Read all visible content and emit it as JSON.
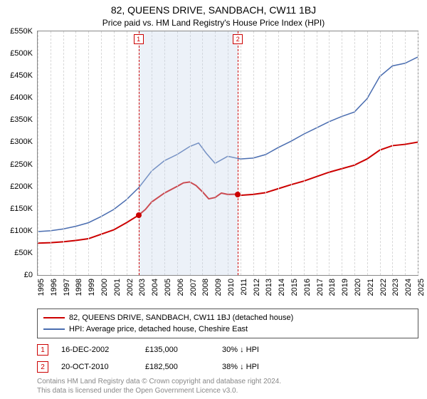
{
  "title": "82, QUEENS DRIVE, SANDBACH, CW11 1BJ",
  "subtitle": "Price paid vs. HM Land Registry's House Price Index (HPI)",
  "chart": {
    "type": "line",
    "ylim": [
      0,
      550000
    ],
    "ytick_step": 50000,
    "ylabels": [
      "£0",
      "£50K",
      "£100K",
      "£150K",
      "£200K",
      "£250K",
      "£300K",
      "£350K",
      "£400K",
      "£450K",
      "£500K",
      "£550K"
    ],
    "xlim": [
      1995,
      2025
    ],
    "xtick_years": [
      1995,
      1996,
      1997,
      1998,
      1999,
      2000,
      2001,
      2002,
      2003,
      2004,
      2005,
      2006,
      2007,
      2008,
      2009,
      2010,
      2011,
      2012,
      2013,
      2014,
      2015,
      2016,
      2017,
      2018,
      2019,
      2020,
      2021,
      2022,
      2023,
      2024,
      2025
    ],
    "grid_color": "#d8d8d8",
    "shade_color": "rgba(200,215,235,0.35)",
    "border_color": "#888888",
    "series": [
      {
        "name": "price_paid",
        "label": "82, QUEENS DRIVE, SANDBACH, CW11 1BJ (detached house)",
        "color": "#cc0000",
        "line_width": 2,
        "points": [
          [
            1995,
            72000
          ],
          [
            1996,
            73000
          ],
          [
            1997,
            75000
          ],
          [
            1998,
            78000
          ],
          [
            1999,
            82000
          ],
          [
            2000,
            92000
          ],
          [
            2001,
            102000
          ],
          [
            2002,
            118000
          ],
          [
            2002.96,
            135000
          ],
          [
            2003.5,
            148000
          ],
          [
            2004,
            165000
          ],
          [
            2005,
            185000
          ],
          [
            2006,
            200000
          ],
          [
            2006.5,
            208000
          ],
          [
            2007,
            210000
          ],
          [
            2007.5,
            202000
          ],
          [
            2008,
            188000
          ],
          [
            2008.5,
            172000
          ],
          [
            2009,
            175000
          ],
          [
            2009.5,
            185000
          ],
          [
            2010,
            182000
          ],
          [
            2010.8,
            182500
          ],
          [
            2011,
            180000
          ],
          [
            2012,
            182000
          ],
          [
            2013,
            186000
          ],
          [
            2014,
            195000
          ],
          [
            2015,
            204000
          ],
          [
            2016,
            212000
          ],
          [
            2017,
            222000
          ],
          [
            2018,
            232000
          ],
          [
            2019,
            240000
          ],
          [
            2020,
            248000
          ],
          [
            2021,
            262000
          ],
          [
            2022,
            282000
          ],
          [
            2023,
            292000
          ],
          [
            2024,
            295000
          ],
          [
            2025,
            300000
          ]
        ]
      },
      {
        "name": "hpi",
        "label": "HPI: Average price, detached house, Cheshire East",
        "color": "#4a6db0",
        "line_width": 1.5,
        "points": [
          [
            1995,
            98000
          ],
          [
            1996,
            100000
          ],
          [
            1997,
            104000
          ],
          [
            1998,
            110000
          ],
          [
            1999,
            118000
          ],
          [
            2000,
            132000
          ],
          [
            2001,
            148000
          ],
          [
            2002,
            170000
          ],
          [
            2003,
            198000
          ],
          [
            2004,
            235000
          ],
          [
            2005,
            258000
          ],
          [
            2006,
            272000
          ],
          [
            2007,
            290000
          ],
          [
            2007.7,
            298000
          ],
          [
            2008.3,
            275000
          ],
          [
            2009,
            252000
          ],
          [
            2010,
            268000
          ],
          [
            2011,
            262000
          ],
          [
            2012,
            264000
          ],
          [
            2013,
            272000
          ],
          [
            2014,
            288000
          ],
          [
            2015,
            302000
          ],
          [
            2016,
            318000
          ],
          [
            2017,
            332000
          ],
          [
            2018,
            346000
          ],
          [
            2019,
            358000
          ],
          [
            2020,
            368000
          ],
          [
            2021,
            398000
          ],
          [
            2022,
            448000
          ],
          [
            2023,
            472000
          ],
          [
            2024,
            478000
          ],
          [
            2025,
            492000
          ]
        ]
      }
    ],
    "sales": [
      {
        "n": 1,
        "year": 2002.96,
        "price": 135000,
        "date": "16-DEC-2002",
        "price_label": "£135,000",
        "delta": "30% ↓ HPI",
        "marker_color": "#cc0000"
      },
      {
        "n": 2,
        "year": 2010.8,
        "price": 182500,
        "date": "20-OCT-2010",
        "price_label": "£182,500",
        "delta": "38% ↓ HPI",
        "marker_color": "#cc0000"
      }
    ]
  },
  "attribution": {
    "line1": "Contains HM Land Registry data © Crown copyright and database right 2024.",
    "line2": "This data is licensed under the Open Government Licence v3.0."
  }
}
